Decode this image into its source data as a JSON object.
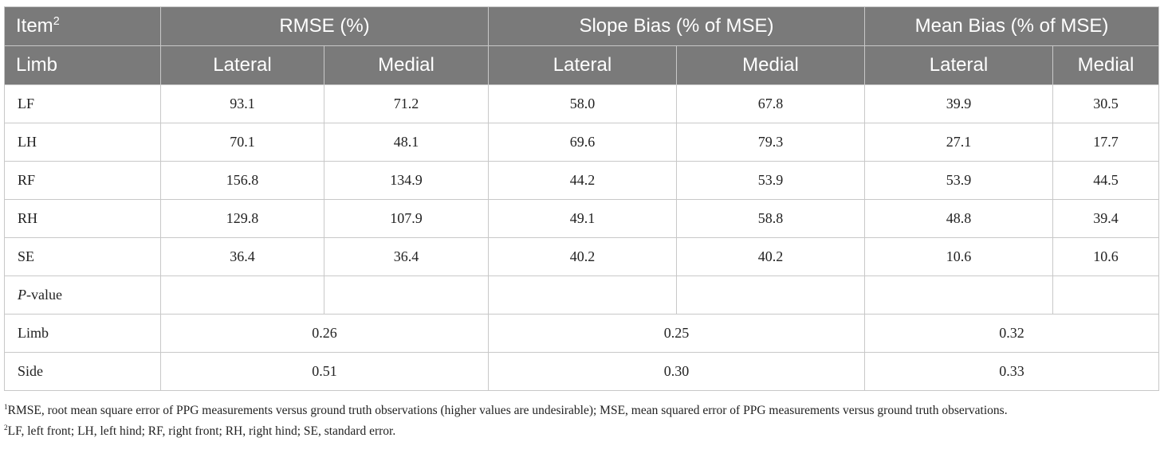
{
  "table": {
    "header_row1": {
      "item_label": "Item",
      "item_sup": "2",
      "groups": [
        "RMSE (%)",
        "Slope Bias (% of MSE)",
        "Mean Bias (% of MSE)"
      ]
    },
    "header_row2": {
      "label": "Limb",
      "subcols": [
        "Lateral",
        "Medial",
        "Lateral",
        "Medial",
        "Lateral",
        "Medial"
      ]
    },
    "rows": [
      {
        "label": "LF",
        "values": [
          "93.1",
          "71.2",
          "58.0",
          "67.8",
          "39.9",
          "30.5"
        ]
      },
      {
        "label": "LH",
        "values": [
          "70.1",
          "48.1",
          "69.6",
          "79.3",
          "27.1",
          "17.7"
        ]
      },
      {
        "label": "RF",
        "values": [
          "156.8",
          "134.9",
          "44.2",
          "53.9",
          "53.9",
          "44.5"
        ]
      },
      {
        "label": "RH",
        "values": [
          "129.8",
          "107.9",
          "49.1",
          "58.8",
          "48.8",
          "39.4"
        ]
      },
      {
        "label": "SE",
        "values": [
          "36.4",
          "36.4",
          "40.2",
          "40.2",
          "10.6",
          "10.6"
        ]
      }
    ],
    "pvalue_row": {
      "label_italic": "P",
      "label_rest": "-value"
    },
    "pvalue_rows": [
      {
        "label": "Limb",
        "values": [
          "0.26",
          "0.25",
          "0.32"
        ]
      },
      {
        "label": "Side",
        "values": [
          "0.51",
          "0.30",
          "0.33"
        ]
      }
    ]
  },
  "footnotes": [
    {
      "mark": "1",
      "text": "RMSE, root mean square error of PPG measurements versus ground truth observations (higher values are undesirable); MSE, mean squared error of PPG measurements versus ground truth observations."
    },
    {
      "mark": "2",
      "text": "LF, left front; LH, left hind; RF, right front; RH, right hind; SE, standard error."
    }
  ]
}
